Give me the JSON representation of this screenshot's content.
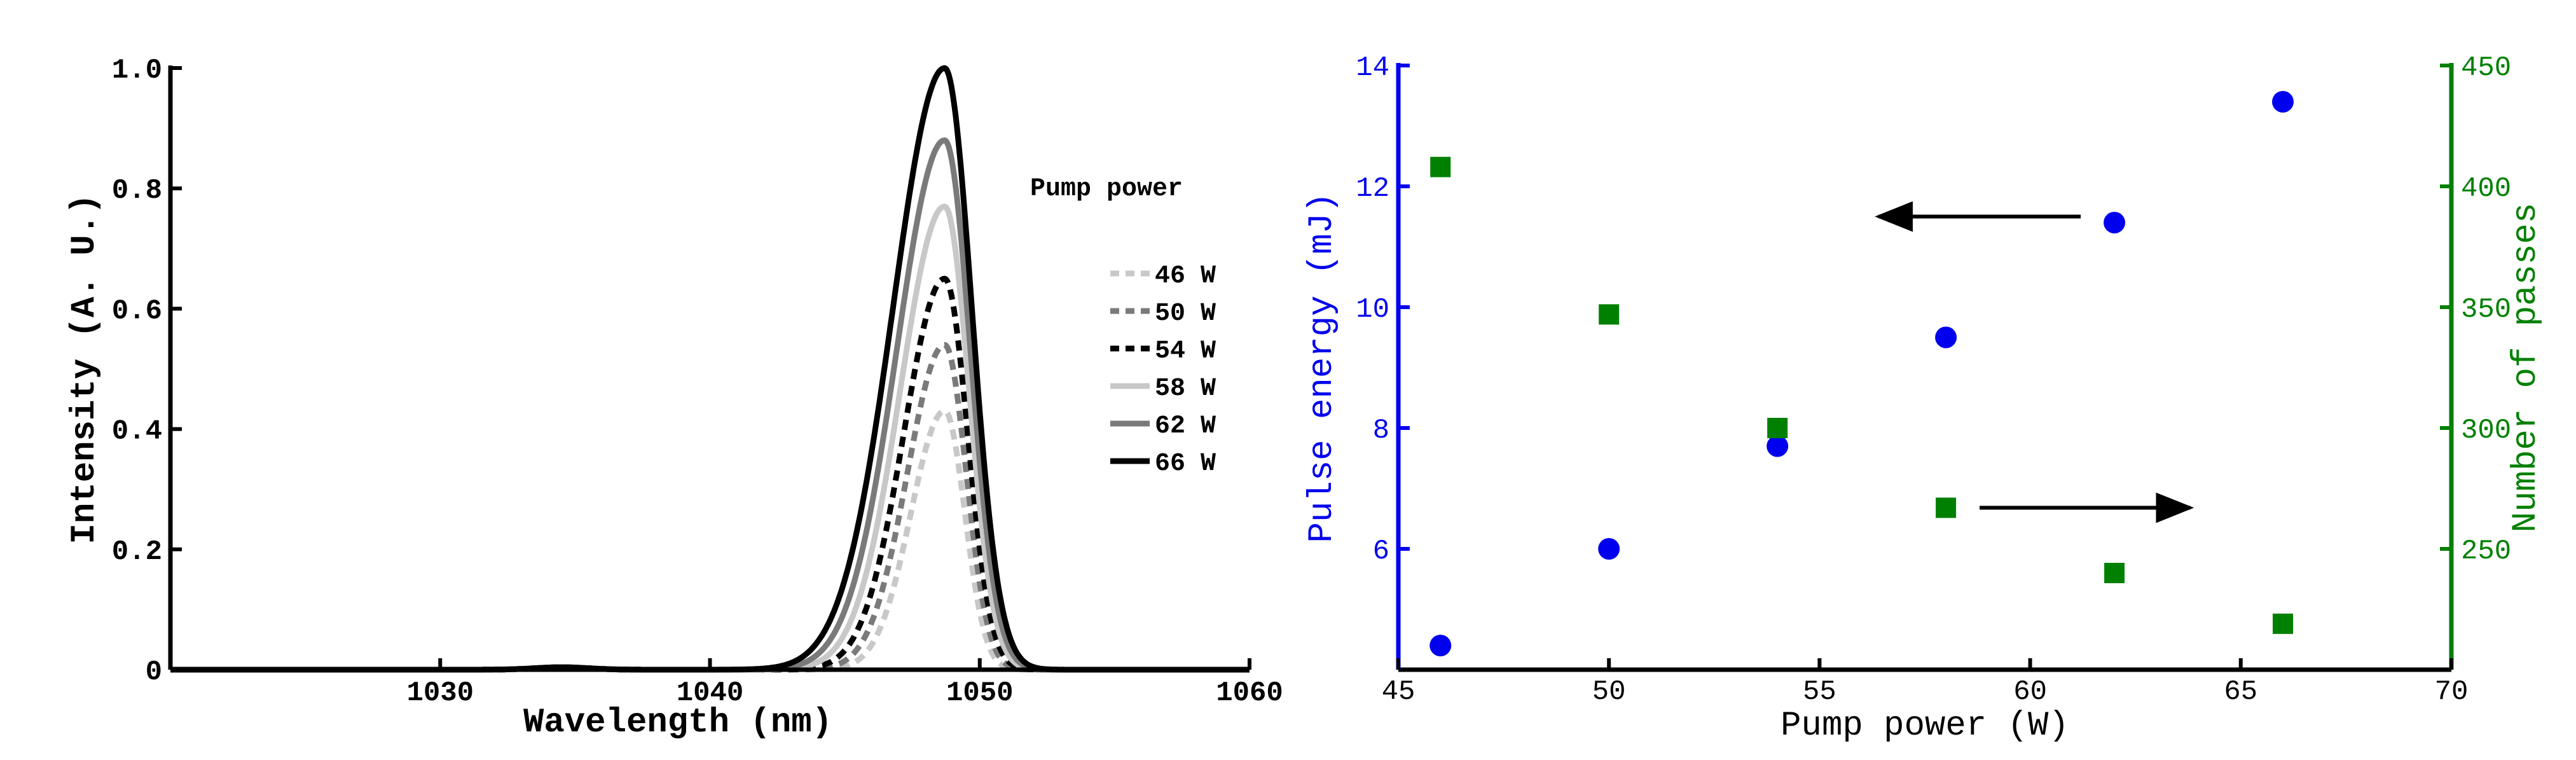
{
  "chart_data": [
    {
      "type": "line",
      "xlabel": "Wavelength (nm)",
      "ylabel": "Intensity (A. U.)",
      "xlim": [
        1020,
        1060
      ],
      "ylim": [
        0,
        1.0
      ],
      "xticks": [
        1030,
        1040,
        1050,
        1060
      ],
      "xtick_labels": [
        "1030",
        "1040",
        "1050",
        "1060"
      ],
      "yticks": [
        0,
        0.2,
        0.4,
        0.6,
        0.8,
        1.0
      ],
      "ytick_labels": [
        "0",
        "0.2",
        "0.4",
        "0.6",
        "0.8",
        "1.0"
      ],
      "legend_title": "Pump power",
      "legend_position": "right",
      "peak_wavelength_nm": 1048.7,
      "series": [
        {
          "name": "46 W",
          "label": "46 W",
          "peak": 0.43,
          "style": "dotted",
          "color": "#c8c8c8"
        },
        {
          "name": "50 W",
          "label": "50 W",
          "peak": 0.54,
          "style": "dotted",
          "color": "#7a7a7a"
        },
        {
          "name": "54 W",
          "label": "54 W",
          "peak": 0.65,
          "style": "dotted",
          "color": "#000000"
        },
        {
          "name": "58 W",
          "label": "58 W",
          "peak": 0.77,
          "style": "solid",
          "color": "#c8c8c8"
        },
        {
          "name": "62 W",
          "label": "62 W",
          "peak": 0.88,
          "style": "solid",
          "color": "#7a7a7a"
        },
        {
          "name": "66 W",
          "label": "66 W",
          "peak": 1.0,
          "style": "solid",
          "color": "#000000"
        }
      ]
    },
    {
      "type": "scatter",
      "xlabel": "Pump power (W)",
      "ylabel_left": "Pulse energy (mJ)",
      "ylabel_right": "Number of passes",
      "xlim": [
        45,
        70
      ],
      "ylim_left": [
        4,
        14
      ],
      "ylim_right": [
        200,
        450
      ],
      "xticks": [
        45,
        50,
        55,
        60,
        65,
        70
      ],
      "xtick_labels": [
        "45",
        "50",
        "55",
        "60",
        "65",
        "70"
      ],
      "yticks_left": [
        6,
        8,
        10,
        12,
        14
      ],
      "ytick_labels_left": [
        "6",
        "8",
        "10",
        "12",
        "14"
      ],
      "yticks_right": [
        250,
        300,
        350,
        400,
        450
      ],
      "ytick_labels_right": [
        "250",
        "300",
        "350",
        "400",
        "450"
      ],
      "series": [
        {
          "name": "Pulse energy",
          "axis": "left",
          "marker": "circle",
          "color": "#0000ee",
          "x": [
            46,
            50,
            54,
            58,
            62,
            66
          ],
          "y": [
            4.4,
            6.0,
            7.7,
            9.5,
            11.4,
            13.4
          ]
        },
        {
          "name": "Number of passes",
          "axis": "right",
          "marker": "square",
          "color": "#008000",
          "x": [
            46,
            50,
            54,
            58,
            62,
            66
          ],
          "y": [
            408,
            347,
            300,
            267,
            240,
            219
          ]
        }
      ],
      "annotations": [
        {
          "type": "arrow",
          "direction": "left",
          "points_to": "Pulse energy axis",
          "from": [
            61.2,
            11.5
          ],
          "to": [
            56.4,
            11.5
          ]
        },
        {
          "type": "arrow",
          "direction": "right",
          "points_to": "Number of passes axis",
          "from": [
            58.8,
            267
          ],
          "to": [
            63.8,
            267
          ]
        }
      ]
    }
  ]
}
